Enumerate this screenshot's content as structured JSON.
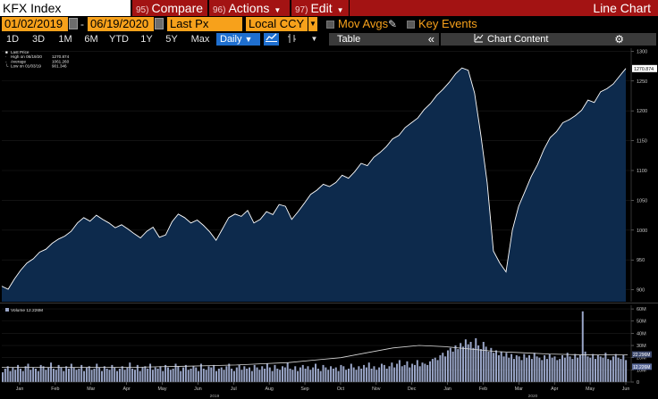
{
  "toolbar": {
    "ticker": "KFX Index",
    "compare": {
      "num": "95)",
      "label": "Compare"
    },
    "actions": {
      "num": "96)",
      "label": "Actions"
    },
    "edit": {
      "num": "97)",
      "label": "Edit"
    },
    "view_title": "Line Chart"
  },
  "settings": {
    "start_date": "01/02/2019",
    "end_date": "06/19/2020",
    "dash": "-",
    "field": "Last Px",
    "currency": "Local CCY",
    "mov_avgs": "Mov Avgs",
    "key_events": "Key Events"
  },
  "timeframes": [
    "1D",
    "3D",
    "1M",
    "6M",
    "YTD",
    "1Y",
    "5Y",
    "Max"
  ],
  "period": "Daily",
  "table_label": "Table",
  "chart_content_label": "Chart Content",
  "icons": {
    "collapse": "«",
    "chart_content": "chart-content-icon",
    "gear": "gear-icon",
    "line_type": "line-chart-icon",
    "bar_type": "ohlc-bar-icon"
  },
  "colors": {
    "accent": "#f7a11b",
    "brand_red": "#a31313",
    "line": "#ffffff",
    "area": "#0d2a4c",
    "volume": "#9aa6c8",
    "highlight": "#1f6fcf"
  },
  "chart_data": {
    "type": "area",
    "price_panel": {
      "legend": [
        "Last Price",
        "High on 06/19/20  1270.874",
        "Average  1061.260",
        "Low on 01/03/19  901.346"
      ],
      "legend_values": [
        "1270.874",
        "1270.874",
        "1061.260",
        "901.346"
      ],
      "last_value_label": "1270.874",
      "y_ticks": [
        900,
        950,
        1000,
        1050,
        1100,
        1150,
        1200,
        1250,
        1300
      ],
      "ylim": [
        880,
        1305
      ],
      "points": [
        [
          0,
          906
        ],
        [
          4,
          901
        ],
        [
          8,
          918
        ],
        [
          12,
          933
        ],
        [
          16,
          945
        ],
        [
          20,
          952
        ],
        [
          24,
          963
        ],
        [
          28,
          968
        ],
        [
          32,
          978
        ],
        [
          36,
          985
        ],
        [
          40,
          990
        ],
        [
          44,
          998
        ],
        [
          48,
          1012
        ],
        [
          52,
          1021
        ],
        [
          56,
          1015
        ],
        [
          60,
          1025
        ],
        [
          64,
          1018
        ],
        [
          68,
          1012
        ],
        [
          72,
          1004
        ],
        [
          76,
          1009
        ],
        [
          80,
          1002
        ],
        [
          84,
          994
        ],
        [
          88,
          987
        ],
        [
          92,
          998
        ],
        [
          96,
          1005
        ],
        [
          100,
          988
        ],
        [
          104,
          992
        ],
        [
          108,
          1014
        ],
        [
          112,
          1027
        ],
        [
          116,
          1021
        ],
        [
          120,
          1012
        ],
        [
          124,
          1017
        ],
        [
          128,
          1008
        ],
        [
          132,
          997
        ],
        [
          136,
          983
        ],
        [
          140,
          1002
        ],
        [
          144,
          1021
        ],
        [
          148,
          1027
        ],
        [
          152,
          1023
        ],
        [
          156,
          1033
        ],
        [
          160,
          1012
        ],
        [
          164,
          1018
        ],
        [
          168,
          1031
        ],
        [
          172,
          1026
        ],
        [
          176,
          1043
        ],
        [
          180,
          1040
        ],
        [
          184,
          1018
        ],
        [
          188,
          1031
        ],
        [
          192,
          1045
        ],
        [
          196,
          1060
        ],
        [
          200,
          1067
        ],
        [
          204,
          1077
        ],
        [
          208,
          1073
        ],
        [
          212,
          1080
        ],
        [
          216,
          1092
        ],
        [
          220,
          1087
        ],
        [
          224,
          1098
        ],
        [
          228,
          1112
        ],
        [
          232,
          1108
        ],
        [
          236,
          1122
        ],
        [
          240,
          1130
        ],
        [
          244,
          1140
        ],
        [
          248,
          1153
        ],
        [
          252,
          1159
        ],
        [
          256,
          1172
        ],
        [
          260,
          1180
        ],
        [
          264,
          1188
        ],
        [
          268,
          1202
        ],
        [
          272,
          1212
        ],
        [
          276,
          1226
        ],
        [
          280,
          1236
        ],
        [
          284,
          1248
        ],
        [
          288,
          1262
        ],
        [
          292,
          1272
        ],
        [
          296,
          1268
        ],
        [
          300,
          1230
        ],
        [
          304,
          1160
        ],
        [
          308,
          1080
        ],
        [
          312,
          965
        ],
        [
          316,
          945
        ],
        [
          320,
          930
        ],
        [
          324,
          1000
        ],
        [
          328,
          1040
        ],
        [
          332,
          1065
        ],
        [
          336,
          1090
        ],
        [
          340,
          1110
        ],
        [
          344,
          1135
        ],
        [
          348,
          1155
        ],
        [
          352,
          1165
        ],
        [
          356,
          1180
        ],
        [
          360,
          1185
        ],
        [
          364,
          1192
        ],
        [
          368,
          1201
        ],
        [
          372,
          1218
        ],
        [
          376,
          1214
        ],
        [
          380,
          1232
        ],
        [
          384,
          1237
        ],
        [
          388,
          1245
        ],
        [
          392,
          1258
        ],
        [
          396,
          1271
        ]
      ]
    },
    "volume_panel": {
      "legend": "Volume  12.226M",
      "last_value_label": "12.226M",
      "average_label": "22.296M",
      "y_ticks": [
        "0",
        "10M",
        "20M",
        "30M",
        "40M",
        "50M",
        "60M"
      ],
      "ylim": [
        0,
        63
      ],
      "values": [
        8,
        11,
        13,
        9,
        12,
        10,
        14,
        11,
        9,
        13,
        15,
        10,
        12,
        11,
        9,
        14,
        13,
        10,
        12,
        16,
        11,
        10,
        14,
        12,
        9,
        13,
        11,
        15,
        12,
        10,
        11,
        14,
        9,
        12,
        13,
        10,
        11,
        15,
        12,
        9,
        13,
        11,
        10,
        14,
        12,
        9,
        11,
        13,
        10,
        12,
        16,
        11,
        10,
        14,
        9,
        12,
        13,
        11,
        15,
        10,
        12,
        11,
        13,
        9,
        14,
        12,
        10,
        11,
        15,
        13,
        9,
        12,
        14,
        10,
        11,
        13,
        12,
        9,
        15,
        11,
        10,
        13,
        12,
        14,
        9,
        11,
        12,
        10,
        13,
        15,
        11,
        9,
        12,
        14,
        10,
        13,
        11,
        12,
        9,
        14,
        12,
        10,
        13,
        11,
        15,
        12,
        9,
        14,
        11,
        10,
        13,
        12,
        16,
        11,
        10,
        13,
        9,
        12,
        14,
        11,
        13,
        10,
        12,
        15,
        11,
        9,
        14,
        12,
        10,
        13,
        11,
        12,
        9,
        14,
        13,
        10,
        11,
        15,
        12,
        10,
        13,
        11,
        14,
        12,
        16,
        11,
        13,
        10,
        12,
        15,
        14,
        11,
        13,
        16,
        12,
        15,
        18,
        13,
        14,
        17,
        12,
        15,
        14,
        18,
        13,
        16,
        15,
        14,
        17,
        19,
        20,
        18,
        22,
        24,
        21,
        26,
        28,
        25,
        30,
        27,
        32,
        29,
        35,
        31,
        33,
        28,
        36,
        30,
        27,
        33,
        29,
        25,
        28,
        24,
        26,
        22,
        25,
        21,
        24,
        20,
        23,
        19,
        22,
        21,
        18,
        23,
        20,
        22,
        19,
        24,
        21,
        20,
        18,
        22,
        19,
        23,
        20,
        21,
        18,
        19,
        22,
        20,
        24,
        21,
        19,
        23,
        20,
        22,
        58,
        25,
        21,
        20,
        23,
        19,
        22,
        21,
        20,
        24,
        19,
        18,
        21,
        23,
        20,
        19,
        22,
        18
      ],
      "moving_average": [
        12,
        12,
        12,
        12,
        12,
        12,
        12.5,
        13,
        13.5,
        14,
        15,
        16,
        18,
        20,
        24,
        28,
        30,
        29,
        27,
        25,
        24,
        23,
        22.5,
        22.3,
        22.3
      ]
    },
    "x_axis": {
      "months": [
        "Jan",
        "Feb",
        "Mar",
        "Apr",
        "May",
        "Jun",
        "Jul",
        "Aug",
        "Sep",
        "Oct",
        "Nov",
        "Dec",
        "Jan",
        "Feb",
        "Mar",
        "Apr",
        "May",
        "Jun"
      ],
      "years": [
        "2019",
        "2020"
      ]
    }
  }
}
